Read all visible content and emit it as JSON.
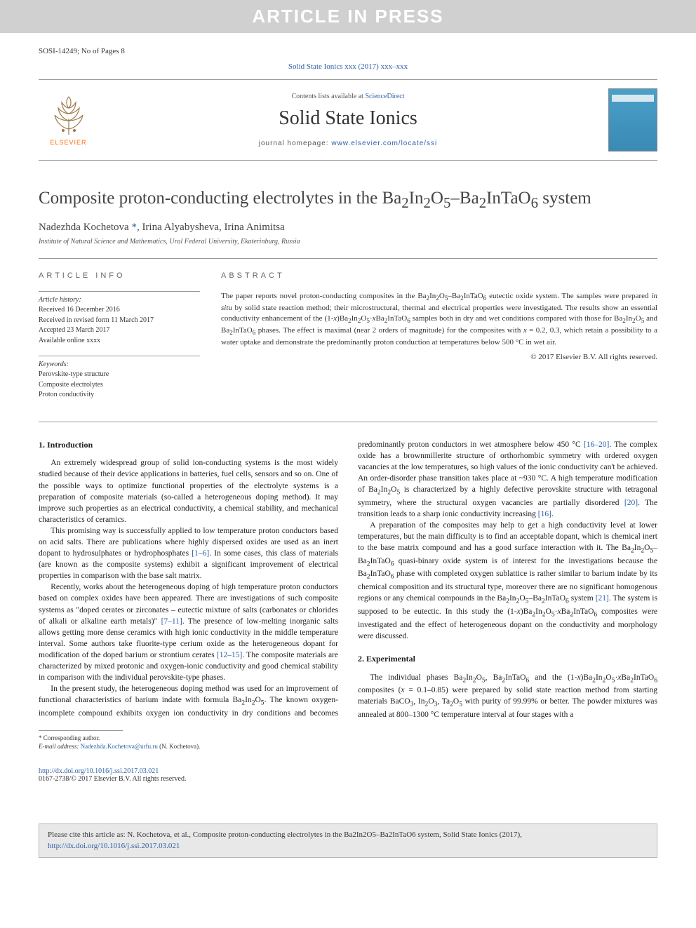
{
  "watermark": "ARTICLE IN PRESS",
  "top_meta": {
    "left": "SOSI-14249; No of Pages 8",
    "right": ""
  },
  "journal_ref": "Solid State Ionics xxx (2017) xxx–xxx",
  "masthead": {
    "contents_text": "Contents lists available at ",
    "contents_link": "ScienceDirect",
    "journal_name": "Solid State Ionics",
    "homepage_label": "journal homepage: ",
    "homepage_url": "www.elsevier.com/locate/ssi",
    "publisher": "ELSEVIER",
    "cover_label": "SOLID STATE IONICS"
  },
  "title_html": "Composite proton-conducting electrolytes in the Ba<sub>2</sub>In<sub>2</sub>O<sub>5</sub>–Ba<sub>2</sub>InTaO<sub>6</sub> system",
  "authors_html": "Nadezhda Kochetova <span class='corr-marker'>*</span>, Irina Alyabysheva, Irina Animitsa",
  "affiliation": "Institute of Natural Science and Mathematics, Ural Federal University, Ekaterinburg, Russia",
  "info": {
    "heading": "ARTICLE INFO",
    "history_label": "Article history:",
    "history": [
      "Received 16 December 2016",
      "Received in revised form 11 March 2017",
      "Accepted 23 March 2017",
      "Available online xxxx"
    ],
    "keywords_label": "Keywords:",
    "keywords": [
      "Perovskite-type structure",
      "Composite electrolytes",
      "Proton conductivity"
    ]
  },
  "abstract": {
    "heading": "ABSTRACT",
    "text_html": "The paper reports novel proton-conducting composites in the Ba<sub>2</sub>In<sub>2</sub>O<sub>5</sub>–Ba<sub>2</sub>InTaO<sub>6</sub> eutectic oxide system. The samples were prepared <i>in situ</i> by solid state reaction method; their microstructural, thermal and electrical properties were investigated. The results show an essential conductivity enhancement of the (1-<i>x</i>)Ba<sub>2</sub>In<sub>2</sub>O<sub>5</sub>·<i>x</i>Ba<sub>2</sub>InTaO<sub>6</sub> samples both in dry and wet conditions compared with those for Ba<sub>2</sub>In<sub>2</sub>O<sub>5</sub> and Ba<sub>2</sub>InTaO<sub>6</sub> phases. The effect is maximal (near 2 orders of magnitude) for the composites with <i>x</i> = 0.2, 0.3, which retain a possibility to a water uptake and demonstrate the predominantly proton conduction at temperatures below 500 °C in wet air.",
    "copyright": "© 2017 Elsevier B.V. All rights reserved."
  },
  "body": {
    "intro_heading": "1. Introduction",
    "intro_paras_html": [
      "An extremely widespread group of solid ion-conducting systems is the most widely studied because of their device applications in batteries, fuel cells, sensors and so on. One of the possible ways to optimize functional properties of the electrolyte systems is a preparation of composite materials (so-called a heterogeneous doping method). It may improve such properties as an electrical conductivity, a chemical stability, and mechanical characteristics of ceramics.",
      "This promising way is successfully applied to low temperature proton conductors based on acid salts. There are publications where highly dispersed oxides are used as an inert dopant to hydrosulphates or hydrophosphates <span class='ref'>[1–6]</span>. In some cases, this class of materials (are known as the composite systems) exhibit a significant improvement of electrical properties in comparison with the base salt matrix.",
      "Recently, works about the heterogeneous doping of high temperature proton conductors based on complex oxides have been appeared. There are investigations of such composite systems as \"doped cerates or zirconates – eutectic mixture of salts (carbonates or chlorides of alkali or alkaline earth metals)\" <span class='ref'>[7–11]</span>. The presence of low-melting inorganic salts allows getting more dense ceramics with high ionic conductivity in the middle temperature interval. Some authors take fluorite-type cerium oxide as the heterogeneous dopant for modification of the doped barium or strontium cerates <span class='ref'>[12–15]</span>. The composite materials are characterized by mixed protonic and oxygen-ionic conductivity and good chemical stability in comparison with the individual perovskite-type phases.",
      "In the present study, the heterogeneous doping method was used for an improvement of functional characteristics of barium indate with formula Ba<sub>2</sub>In<sub>2</sub>O<sub>5</sub>. The known oxygen-incomplete compound exhibits oxygen ion conductivity in dry conditions and becomes predominantly proton conductors in wet atmosphere below 450 °C <span class='ref'>[16–20]</span>. The complex oxide has a brownmillerite structure of orthorhombic symmetry with ordered oxygen vacancies at the low temperatures, so high values of the ionic conductivity can't be achieved. An order-disorder phase transition takes place at ~930 °C. A high temperature modification of Ba<sub>2</sub>In<sub>2</sub>O<sub>5</sub> is characterized by a highly defective perovskite structure with tetragonal symmetry, where the structural oxygen vacancies are partially disordered <span class='ref'>[20]</span>. The transition leads to a sharp ionic conductivity increasing <span class='ref'>[16]</span>.",
      "A preparation of the composites may help to get a high conductivity level at lower temperatures, but the main difficulty is to find an acceptable dopant, which is chemical inert to the base matrix compound and has a good surface interaction with it. The Ba<sub>2</sub>In<sub>2</sub>O<sub>5</sub>–Ba<sub>2</sub>InTaO<sub>6</sub> quasi-binary oxide system is of interest for the investigations because the Ba<sub>2</sub>InTaO<sub>6</sub> phase with completed oxygen sublattice is rather similar to barium indate by its chemical composition and its structural type, moreover there are no significant homogenous regions or any chemical compounds in the Ba<sub>2</sub>In<sub>2</sub>O<sub>5</sub>–Ba<sub>2</sub>InTaO<sub>6</sub> system <span class='ref'>[21]</span>. The system is supposed to be eutectic. In this study the (1-<i>x</i>)Ba<sub>2</sub>In<sub>2</sub>O<sub>5</sub>·<i>x</i>Ba<sub>2</sub>InTaO<sub>6</sub> composites were investigated and the effect of heterogeneous dopant on the conductivity and morphology were discussed."
    ],
    "exp_heading": "2. Experimental",
    "exp_paras_html": [
      "The individual phases Ba<sub>2</sub>In<sub>2</sub>O<sub>5</sub>, Ba<sub>2</sub>InTaO<sub>6</sub> and the (1-<i>x</i>)Ba<sub>2</sub>In<sub>2</sub>O<sub>5</sub>·<i>x</i>Ba<sub>2</sub>InTaO<sub>6</sub> composites (<i>x</i> = 0.1–0.85) were prepared by solid state reaction method from starting materials BaCO<sub>3</sub>, In<sub>2</sub>O<sub>3</sub>, Ta<sub>2</sub>O<sub>5</sub> with purity of 99.99% or better. The powder mixtures was annealed at 800–1300 °C temperature interval at four stages with a"
    ]
  },
  "footnote": {
    "corr": "* Corresponding author.",
    "email_label": "E-mail address: ",
    "email": "Nadezhda.Kochetova@urfu.ru",
    "email_suffix": " (N. Kochetova)."
  },
  "doi": {
    "url": "http://dx.doi.org/10.1016/j.ssi.2017.03.021",
    "issn_line": "0167-2738/© 2017 Elsevier B.V. All rights reserved."
  },
  "citebox": {
    "text": "Please cite this article as: N. Kochetova, et al., Composite proton-conducting electrolytes in the Ba2In2O5–Ba2InTaO6 system, Solid State Ionics (2017), ",
    "url": "http://dx.doi.org/10.1016/j.ssi.2017.03.021"
  },
  "colors": {
    "link": "#2c5fa5",
    "watermark_bg": "#d0d0d0",
    "watermark_fg": "#ffffff",
    "elsevier_orange": "#ff6600",
    "cover_blue": "#4aa0c8",
    "citebox_bg": "#e8e8e8"
  }
}
